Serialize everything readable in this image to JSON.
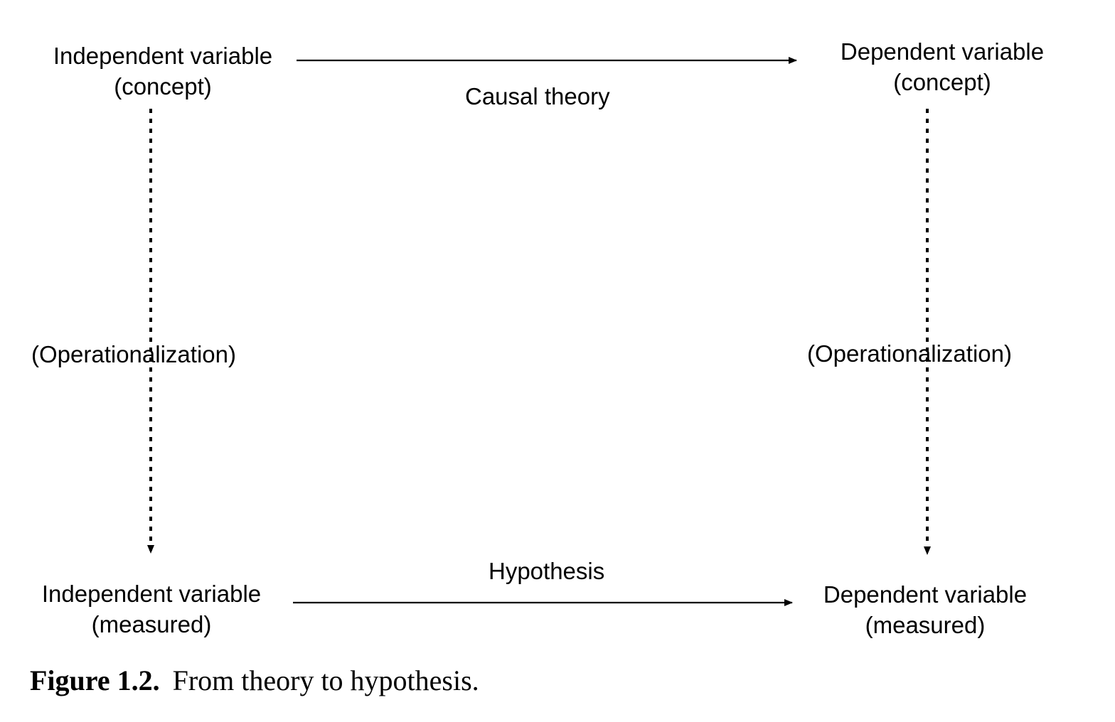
{
  "diagram": {
    "nodes": {
      "iv_concept": {
        "line1": "Independent variable",
        "line2": "(concept)"
      },
      "dv_concept": {
        "line1": "Dependent variable",
        "line2": "(concept)"
      },
      "iv_measured": {
        "line1": "Independent variable",
        "line2": "(measured)"
      },
      "dv_measured": {
        "line1": "Dependent variable",
        "line2": "(measured)"
      }
    },
    "edges": {
      "causal_theory": "Causal theory",
      "hypothesis": "Hypothesis",
      "operationalization_left": "(Operationalization)",
      "operationalization_right": "(Operationalization)"
    }
  },
  "caption": {
    "number": "Figure 1.2.",
    "text": "From theory to hypothesis."
  }
}
